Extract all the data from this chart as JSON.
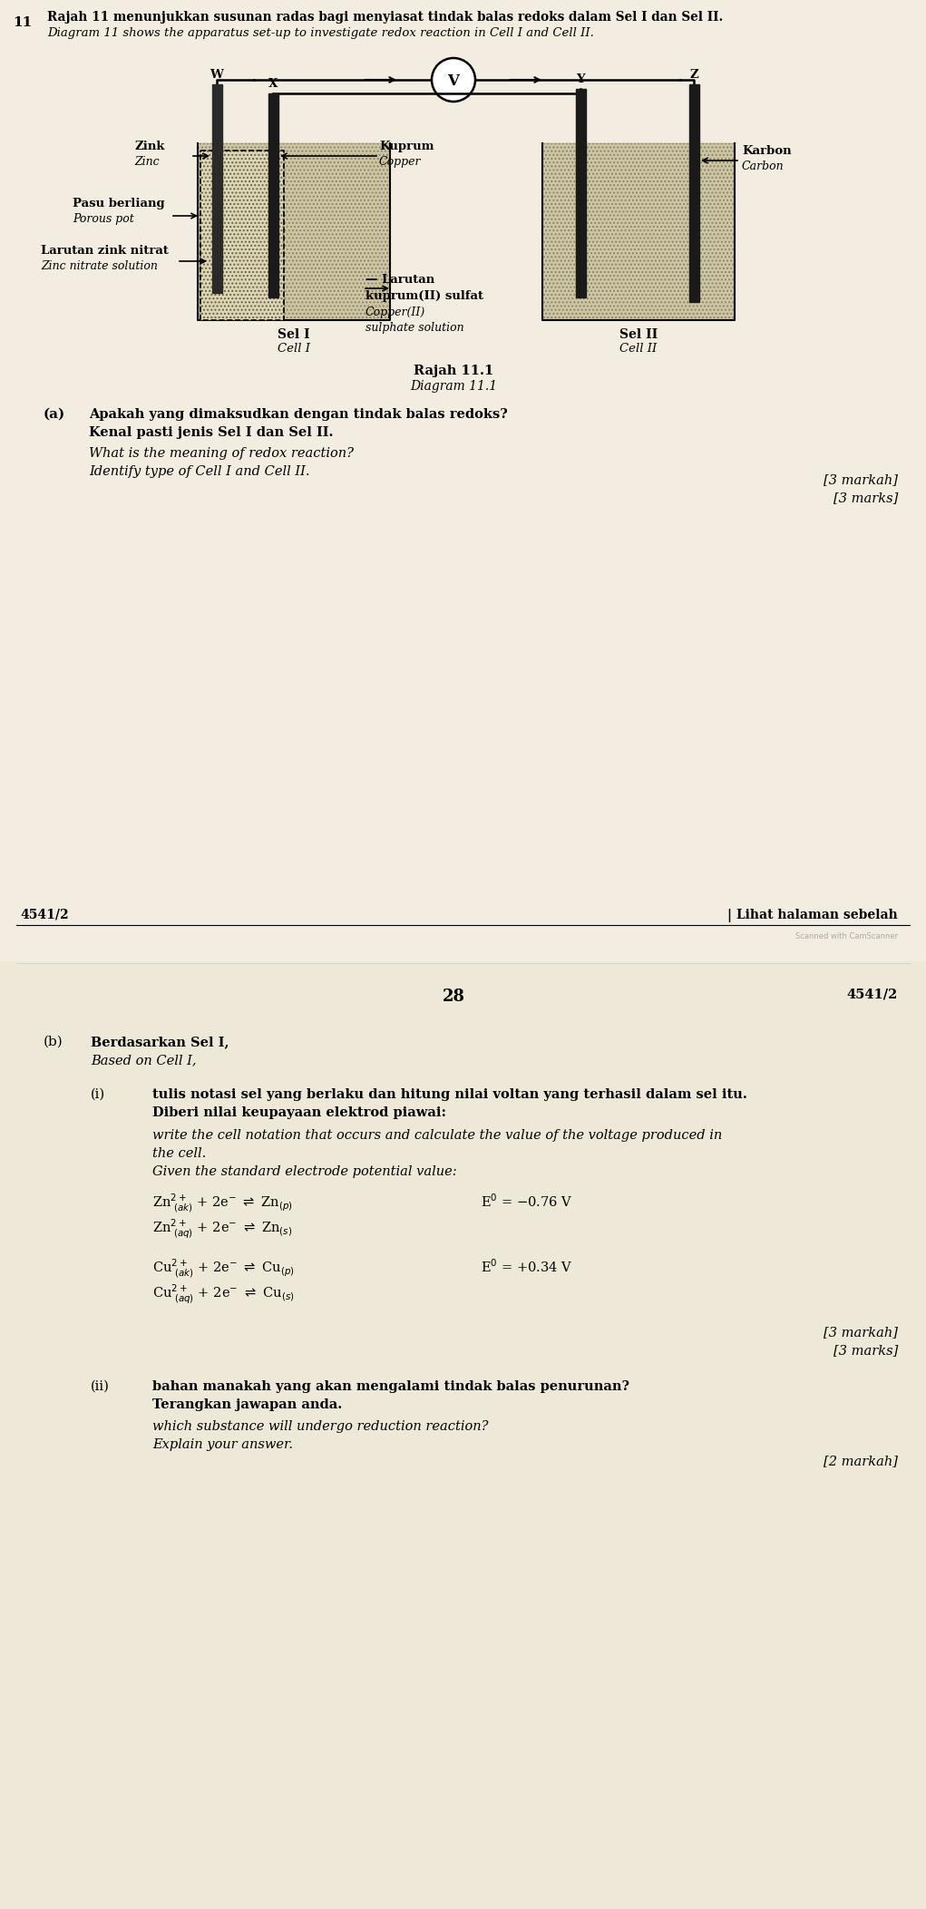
{
  "page_bg": "#f2ede0",
  "title_line1": "Rajah 11 menunjukkan susunan radas bagi menyiasat tindak balas redoks dalam Sel I dan Sel II.",
  "title_line2": "Diagram 11 shows the apparatus set-up to investigate redox reaction in Cell I and Cell II.",
  "diagram_caption1": "Rajah 11.1",
  "diagram_caption2": "Diagram 11.1",
  "q_a_bold1": "Apakah yang dimaksudkan dengan tindak balas redoks?",
  "q_a_bold2": "Kenal pasti jenis Sel I dan Sel II.",
  "q_a_italic1": "What is the meaning of redox reaction?",
  "q_a_italic2": "Identify type of Cell I and Cell II.",
  "marks_a1": "[3 markah]",
  "marks_a2": "[3 marks]",
  "footer_left": "4541/2",
  "footer_right": "| Lihat halaman sebelah",
  "page_num": "28",
  "page_num_right": "4541/2",
  "q_b_bold1": "Berdasarkan Sel I,",
  "q_b_italic1": "Based on Cell I,",
  "q_bi_bold1": "tulis notasi sel yang berlaku dan hitung nilai voltan yang terhasil dalam sel itu.",
  "q_bi_bold2": "Diberi nilai keupayaan elektrod piawai:",
  "q_bi_italic1": "write the cell notation that occurs and calculate the value of the voltage produced in",
  "q_bi_italic2": "the cell.",
  "q_bi_italic3": "Given the standard electrode potential value:",
  "marks_bi1": "[3 markah]",
  "marks_bi2": "[3 marks]",
  "q_bii_bold1": "bahan manakah yang akan mengalami tindak balas penurunan?",
  "q_bii_bold2": "Terangkan jawapan anda.",
  "q_bii_italic1": "which substance will undergo reduction reaction?",
  "q_bii_italic2": "Explain your answer.",
  "marks_bii1": "[2 markah]",
  "question_num": "11",
  "scanned_text": "Scanned with CamScanner"
}
